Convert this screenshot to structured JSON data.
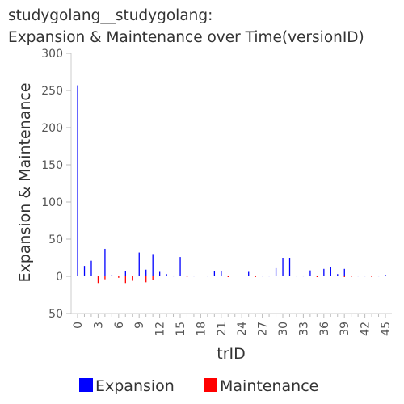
{
  "chart_data": {
    "type": "bar",
    "title_line1": "studygolang__studygolang:",
    "title_line2": "Expansion & Maintenance over Time(versionID)",
    "xlabel": "trID",
    "ylabel": "Expansion & Maintenance",
    "xlim": [
      0,
      45
    ],
    "ylim": [
      -50,
      300
    ],
    "y_tick_labels": [
      "300",
      "250",
      "200",
      "150",
      "100",
      "50",
      "0",
      "50"
    ],
    "y_tick_values": [
      300,
      250,
      200,
      150,
      100,
      50,
      0,
      -50
    ],
    "x_ticks": [
      0,
      3,
      6,
      9,
      12,
      15,
      18,
      21,
      24,
      27,
      30,
      33,
      36,
      39,
      42,
      45
    ],
    "x_tick_labels": [
      "0",
      "3",
      "6",
      "9",
      "12",
      "15",
      "18",
      "21",
      "24",
      "27",
      "30",
      "33",
      "36",
      "39",
      "42",
      "45"
    ],
    "grid": false,
    "legend_position": "bottom",
    "series": [
      {
        "name": "Expansion",
        "color": "#0000ff",
        "x": [
          0,
          1,
          2,
          4,
          5,
          7,
          9,
          10,
          11,
          12,
          13,
          14,
          15,
          16,
          17,
          19,
          20,
          21,
          22,
          25,
          27,
          28,
          29,
          30,
          31,
          32,
          33,
          34,
          36,
          37,
          38,
          39,
          40,
          41,
          42,
          43,
          44,
          45
        ],
        "values": [
          257,
          14,
          21,
          37,
          2,
          7,
          32,
          9,
          30,
          6,
          3,
          1,
          26,
          1,
          1,
          1,
          7,
          7,
          1,
          6,
          1,
          1,
          11,
          25,
          25,
          1,
          1,
          8,
          10,
          13,
          3,
          10,
          1,
          1,
          1,
          1,
          1,
          2
        ]
      },
      {
        "name": "Maintenance",
        "color": "#ff0000",
        "x": [
          3,
          4,
          6,
          7,
          8,
          10,
          11,
          16,
          22,
          26,
          35,
          39,
          40,
          43
        ],
        "values": [
          -9,
          -4,
          -2,
          -9,
          -6,
          -8,
          -5,
          -1,
          -1,
          -1,
          -1,
          -1,
          -1,
          -1
        ]
      }
    ]
  }
}
